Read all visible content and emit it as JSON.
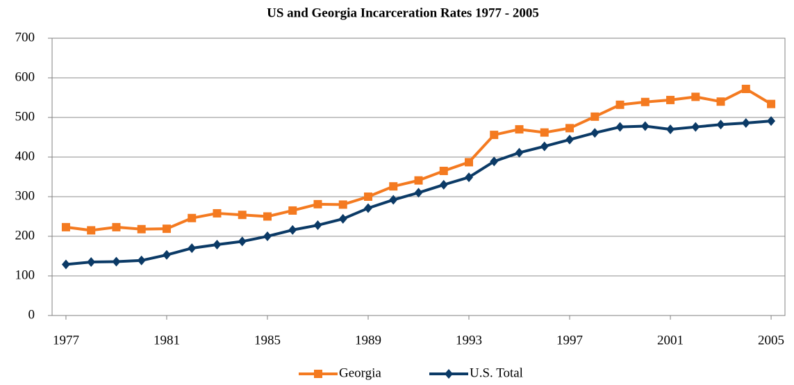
{
  "chart_data": {
    "type": "line",
    "title": "US and Georgia Incarceration Rates 1977 - 2005",
    "x": [
      1977,
      1978,
      1979,
      1980,
      1981,
      1982,
      1983,
      1984,
      1985,
      1986,
      1987,
      1988,
      1989,
      1990,
      1991,
      1992,
      1993,
      1994,
      1995,
      1996,
      1997,
      1998,
      1999,
      2000,
      2001,
      2002,
      2003,
      2004,
      2005
    ],
    "series": [
      {
        "name": "Georgia",
        "color": "#f47a20",
        "marker": "square",
        "values": [
          223,
          215,
          223,
          218,
          219,
          246,
          258,
          254,
          250,
          265,
          281,
          280,
          300,
          326,
          341,
          365,
          387,
          456,
          470,
          462,
          473,
          502,
          532,
          539,
          544,
          552,
          540,
          572,
          534
        ]
      },
      {
        "name": "U.S. Total",
        "color": "#0b3a66",
        "marker": "diamond",
        "values": [
          129,
          135,
          136,
          139,
          153,
          170,
          179,
          187,
          200,
          216,
          228,
          244,
          271,
          292,
          310,
          330,
          349,
          389,
          411,
          427,
          444,
          461,
          476,
          478,
          470,
          476,
          482,
          486,
          491
        ]
      }
    ],
    "xlim": [
      1976.45,
      2005.55
    ],
    "xticks": [
      1977,
      1981,
      1985,
      1989,
      1993,
      1997,
      2001,
      2005
    ],
    "ylim": [
      0,
      700
    ],
    "yticks": [
      0,
      100,
      200,
      300,
      400,
      500,
      600,
      700
    ],
    "grid": true,
    "legend": "bottom"
  }
}
